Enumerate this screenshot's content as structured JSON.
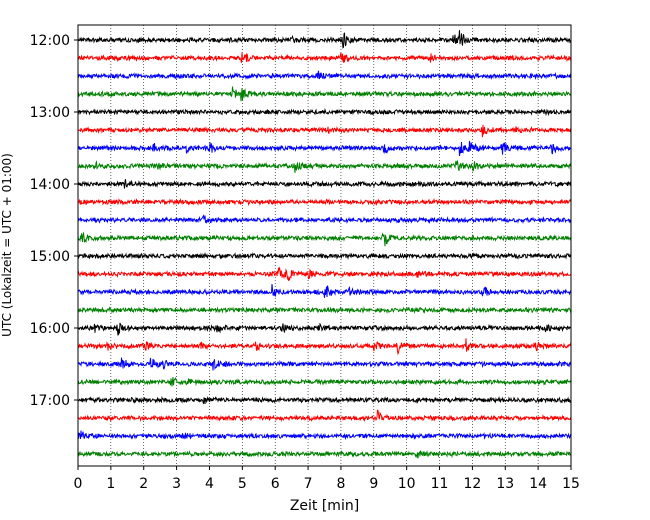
{
  "chart_data": {
    "type": "line",
    "title": "",
    "xlabel": "Zeit  [min]",
    "ylabel": "UTC (Lokalzeit = UTC + 01:00)",
    "xlim": [
      0,
      15
    ],
    "xticks": [
      "0",
      "1",
      "2",
      "3",
      "4",
      "5",
      "6",
      "7",
      "8",
      "9",
      "10",
      "11",
      "12",
      "13",
      "14",
      "15"
    ],
    "ytick_labels": [
      "12:00",
      "13:00",
      "14:00",
      "15:00",
      "16:00",
      "17:00"
    ],
    "trace_interval_min": 15,
    "trace_colors": [
      "#000000",
      "#ff0000",
      "#0000ff",
      "#008000"
    ],
    "grid": {
      "x": true,
      "style": "dotted"
    },
    "series": [
      {
        "start": "12:00",
        "color": "#000000",
        "events": [
          [
            8.05,
            10
          ],
          [
            11.6,
            10
          ],
          [
            11.4,
            7
          ],
          [
            6.5,
            3
          ]
        ]
      },
      {
        "start": "12:15",
        "color": "#ff0000",
        "events": [
          [
            4.95,
            10
          ],
          [
            8.0,
            9
          ],
          [
            10.7,
            5
          ]
        ]
      },
      {
        "start": "12:30",
        "color": "#0000ff",
        "events": [
          [
            7.3,
            6
          ]
        ]
      },
      {
        "start": "12:45",
        "color": "#008000",
        "events": [
          [
            4.95,
            8
          ],
          [
            4.7,
            6
          ]
        ]
      },
      {
        "start": "13:00",
        "color": "#000000",
        "events": []
      },
      {
        "start": "13:15",
        "color": "#ff0000",
        "events": [
          [
            12.3,
            8
          ],
          [
            13.3,
            5
          ],
          [
            7.6,
            3
          ]
        ]
      },
      {
        "start": "13:30",
        "color": "#0000ff",
        "events": [
          [
            11.6,
            8
          ],
          [
            12.9,
            7
          ],
          [
            2.3,
            6
          ],
          [
            9.3,
            7
          ],
          [
            14.4,
            6
          ],
          [
            3.3,
            5
          ],
          [
            4.0,
            5
          ],
          [
            11.9,
            7
          ]
        ]
      },
      {
        "start": "13:45",
        "color": "#008000",
        "events": [
          [
            11.5,
            6
          ],
          [
            12.0,
            6
          ],
          [
            6.6,
            5
          ],
          [
            0.5,
            5
          ],
          [
            2.4,
            4
          ]
        ]
      },
      {
        "start": "14:00",
        "color": "#000000",
        "events": [
          [
            1.4,
            4
          ]
        ]
      },
      {
        "start": "14:15",
        "color": "#ff0000",
        "events": []
      },
      {
        "start": "14:30",
        "color": "#0000ff",
        "events": [
          [
            3.8,
            4
          ]
        ]
      },
      {
        "start": "14:45",
        "color": "#008000",
        "events": [
          [
            9.3,
            10
          ],
          [
            0.1,
            6
          ]
        ]
      },
      {
        "start": "15:00",
        "color": "#000000",
        "events": []
      },
      {
        "start": "15:15",
        "color": "#ff0000",
        "events": [
          [
            6.35,
            9
          ],
          [
            6.1,
            6
          ],
          [
            7.0,
            4
          ],
          [
            10.3,
            4
          ]
        ]
      },
      {
        "start": "15:30",
        "color": "#0000ff",
        "events": [
          [
            7.5,
            10
          ],
          [
            5.9,
            7
          ],
          [
            12.3,
            7
          ],
          [
            8.2,
            5
          ]
        ]
      },
      {
        "start": "15:45",
        "color": "#008000",
        "events": []
      },
      {
        "start": "16:00",
        "color": "#000000",
        "events": [
          [
            1.2,
            8
          ],
          [
            4.2,
            6
          ],
          [
            6.2,
            5
          ],
          [
            7.3,
            4
          ],
          [
            14.2,
            4
          ],
          [
            0.5,
            3
          ],
          [
            15.0,
            4
          ]
        ]
      },
      {
        "start": "16:15",
        "color": "#ff0000",
        "events": [
          [
            9.7,
            8
          ],
          [
            9.0,
            7
          ],
          [
            2.0,
            6
          ],
          [
            0.9,
            5
          ],
          [
            11.8,
            6
          ],
          [
            13.9,
            5
          ],
          [
            5.4,
            4
          ],
          [
            3.7,
            4
          ]
        ]
      },
      {
        "start": "16:30",
        "color": "#0000ff",
        "events": [
          [
            1.3,
            7
          ],
          [
            2.2,
            7
          ],
          [
            4.1,
            6
          ],
          [
            2.6,
            5
          ]
        ]
      },
      {
        "start": "16:45",
        "color": "#008000",
        "events": [
          [
            2.8,
            8
          ],
          [
            3.3,
            5
          ]
        ]
      },
      {
        "start": "17:00",
        "color": "#000000",
        "events": [
          [
            3.8,
            3
          ]
        ]
      },
      {
        "start": "17:15",
        "color": "#ff0000",
        "events": [
          [
            9.1,
            8
          ]
        ]
      },
      {
        "start": "17:30",
        "color": "#0000ff",
        "events": [
          [
            0.05,
            6
          ],
          [
            3.2,
            4
          ]
        ]
      },
      {
        "start": "17:45",
        "color": "#008000",
        "events": [
          [
            10.3,
            4
          ]
        ]
      }
    ]
  }
}
